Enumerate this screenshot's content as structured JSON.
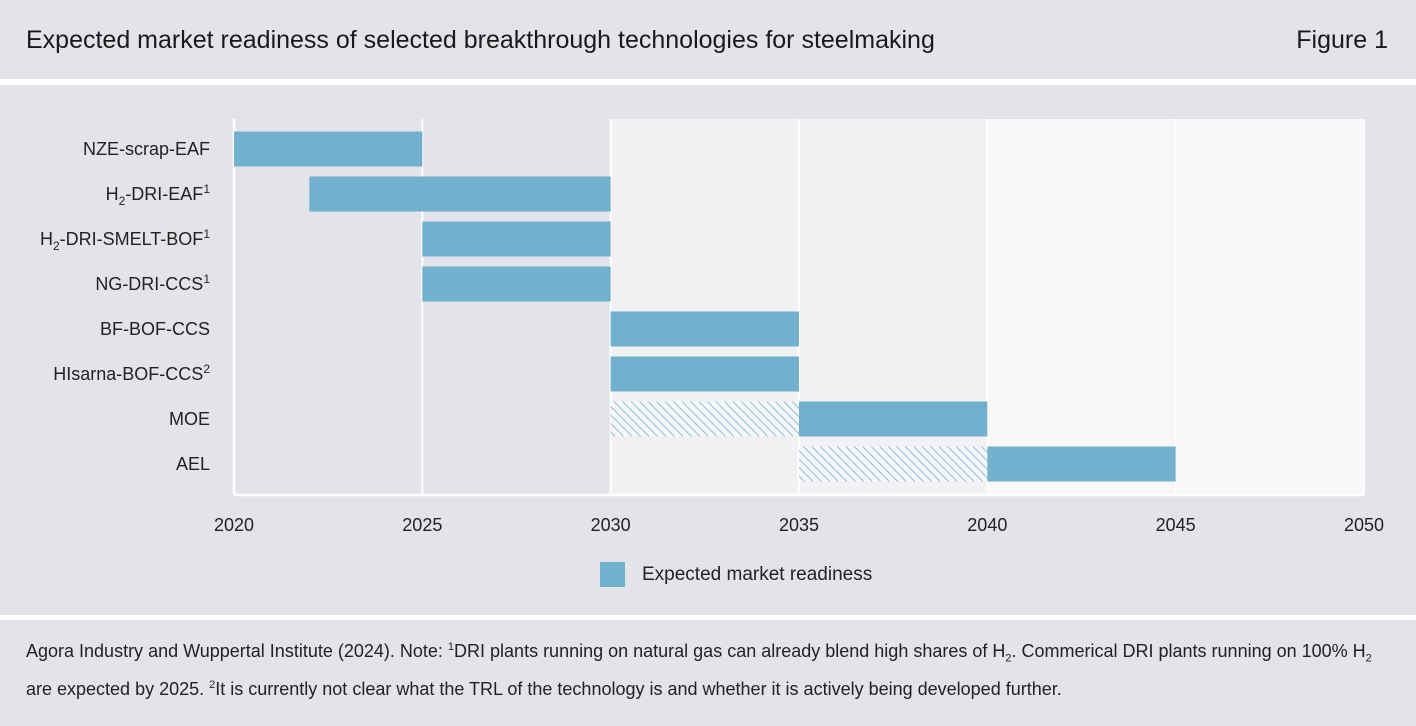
{
  "header": {
    "title": "Expected market readiness of selected breakthrough technologies for steelmaking",
    "figure_label": "Figure 1"
  },
  "chart_data": {
    "type": "bar",
    "subtype": "gantt",
    "title": "Expected market readiness of selected breakthrough technologies for steelmaking",
    "xlabel": "",
    "ylabel": "",
    "xlim": [
      2020,
      2050
    ],
    "xticks": [
      "2020",
      "2025",
      "2030",
      "2035",
      "2040",
      "2045",
      "2050"
    ],
    "grid": true,
    "rows": [
      {
        "label": "NZE-scrap-EAF",
        "base": "NZE-scrap-EAF",
        "sub": "",
        "sup": "",
        "start": 2020,
        "end": 2025,
        "hatch_start": null,
        "hatch_end": null
      },
      {
        "label": "H2-DRI-EAF1",
        "base": "H",
        "sub": "2",
        "rest": "-DRI-EAF",
        "sup": "1",
        "start": 2022,
        "end": 2030,
        "hatch_start": null,
        "hatch_end": null
      },
      {
        "label": "H2-DRI-SMELT-BOF1",
        "base": "H",
        "sub": "2",
        "rest": "-DRI-SMELT-BOF",
        "sup": "1",
        "start": 2025,
        "end": 2030,
        "hatch_start": null,
        "hatch_end": null
      },
      {
        "label": "NG-DRI-CCS1",
        "base": "NG-DRI-CCS",
        "sub": "",
        "sup": "1",
        "start": 2025,
        "end": 2030,
        "hatch_start": null,
        "hatch_end": null
      },
      {
        "label": "BF-BOF-CCS",
        "base": "BF-BOF-CCS",
        "sub": "",
        "sup": "",
        "start": 2030,
        "end": 2035,
        "hatch_start": null,
        "hatch_end": null
      },
      {
        "label": "HIsarna-BOF-CCS2",
        "base": "HIsarna-BOF-CCS",
        "sub": "",
        "sup": "2",
        "start": 2030,
        "end": 2035,
        "hatch_start": null,
        "hatch_end": null
      },
      {
        "label": "MOE",
        "base": "MOE",
        "sub": "",
        "sup": "",
        "start": 2035,
        "end": 2040,
        "hatch_start": 2030,
        "hatch_end": 2035
      },
      {
        "label": "AEL",
        "base": "AEL",
        "sub": "",
        "sup": "",
        "start": 2040,
        "end": 2045,
        "hatch_start": 2035,
        "hatch_end": 2040
      }
    ],
    "legend": [
      {
        "name": "Expected market readiness",
        "color": "#72b1cd"
      }
    ],
    "legend_position": "bottom-center",
    "colors": {
      "bar": "#72b1cd",
      "hatch": "#72b1cd"
    }
  },
  "footer": {
    "note_part1": "Agora Industry and Wuppertal Institute (2024). Note: ",
    "sup1": "1",
    "note_part2": "DRI plants running on natural gas can already blend high shares of H",
    "sub1": "2",
    "note_part3": ". Commerical DRI plants running on 100% H",
    "sub2": "2",
    "note_part4": " are expected by 2025. ",
    "sup2": "2",
    "note_part5": "It is currently not clear what the TRL of the technology is and whether it is actively being developed further."
  }
}
